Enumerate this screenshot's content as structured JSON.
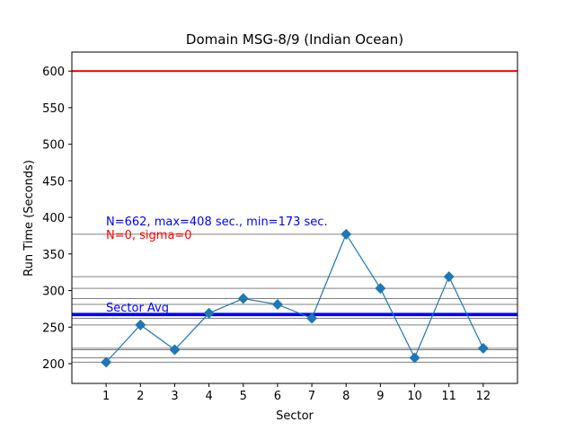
{
  "chart_data": {
    "type": "line",
    "title": "Domain MSG-8/9 (Indian Ocean)",
    "xlabel": "Sector",
    "ylabel": "Run Time (Seconds)",
    "xlim": [
      0,
      13
    ],
    "ylim": [
      173,
      626
    ],
    "x_ticks": [
      1,
      2,
      3,
      4,
      5,
      6,
      7,
      8,
      9,
      10,
      11,
      12
    ],
    "y_ticks": [
      200,
      250,
      300,
      350,
      400,
      450,
      500,
      550,
      600
    ],
    "grid": false,
    "series": [
      {
        "x": [
          1,
          2,
          3,
          4,
          5,
          6,
          7,
          8,
          9,
          10,
          11,
          12
        ],
        "values": [
          202,
          253,
          219,
          269,
          289,
          281,
          262,
          377,
          303,
          208,
          319,
          221
        ],
        "color": "#1f77b4",
        "marker": "diamond"
      }
    ],
    "reference_lines": [
      {
        "y": 600,
        "color": "#ff0000",
        "kind": "limit"
      },
      {
        "y": 267,
        "color": "#0000ff",
        "kind": "average",
        "label": "Sector Avg"
      }
    ],
    "gray_lines": [
      202,
      208,
      219,
      221,
      253,
      262,
      269,
      281,
      289,
      303,
      319,
      377
    ],
    "gray_color": "#808080",
    "annotations": [
      {
        "text": "N=662, max=408 sec., min=173 sec.",
        "color": "#0000ff"
      },
      {
        "text": "N=0, sigma=0",
        "color": "#ff0000"
      }
    ]
  }
}
